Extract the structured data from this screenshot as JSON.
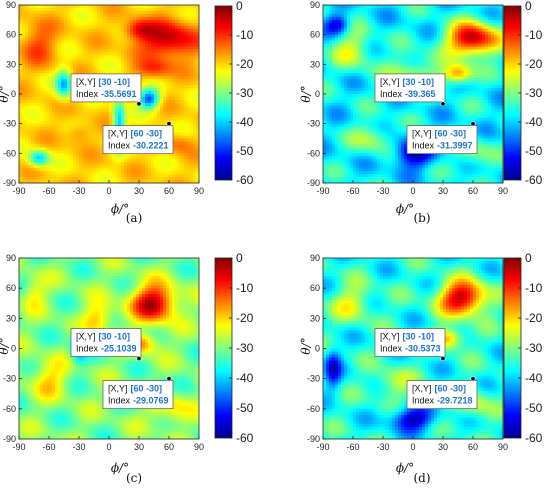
{
  "chart_data": [
    {
      "type": "heatmap",
      "panel_label": "(a)",
      "xlabel": "ϕ/°",
      "ylabel": "θ/°",
      "xlim": [
        -90,
        90
      ],
      "ylim": [
        -90,
        90
      ],
      "x_ticks": [
        "-90",
        "-60",
        "-30",
        "0",
        "30",
        "60",
        "90"
      ],
      "y_ticks": [
        "90",
        "60",
        "30",
        "0",
        "-30",
        "-60",
        "-90"
      ],
      "colorbar": {
        "range": [
          -60,
          0
        ],
        "ticks": [
          "0",
          "-10",
          "-20",
          "-30",
          "-40",
          "-50",
          "-60"
        ],
        "colormap": "jet"
      },
      "datatips": [
        {
          "xy_label": "[X,Y]",
          "xy": "[30 -10]",
          "index_label": "Index",
          "index": "-35.5691",
          "x": 30,
          "y": -10,
          "value": -35.5691
        },
        {
          "xy_label": "[X,Y]",
          "xy": "[60 -30]",
          "index_label": "Index",
          "index": "-30.2221",
          "x": 60,
          "y": -30,
          "value": -30.2221
        }
      ],
      "background_level": -20,
      "hotspots": [
        {
          "x": 60,
          "y": 55,
          "value": -3,
          "sx": 28,
          "sy": 18
        },
        {
          "x": 45,
          "y": 25,
          "value": -10,
          "sx": 18,
          "sy": 10
        },
        {
          "x": -70,
          "y": 50,
          "value": -12,
          "sx": 18,
          "sy": 22
        },
        {
          "x": 30,
          "y": 65,
          "value": -8,
          "sx": 15,
          "sy": 10
        },
        {
          "x": -30,
          "y": -40,
          "value": -14,
          "sx": 12,
          "sy": 10
        },
        {
          "x": 0,
          "y": 5,
          "value": -14,
          "sx": 12,
          "sy": 8
        },
        {
          "x": 70,
          "y": -50,
          "value": -14,
          "sx": 14,
          "sy": 10
        }
      ],
      "dips": [
        {
          "x": 40,
          "y": -5,
          "value": -48,
          "sx": 10,
          "sy": 10
        },
        {
          "x": -45,
          "y": 10,
          "value": -42,
          "sx": 8,
          "sy": 14
        },
        {
          "x": 10,
          "y": -30,
          "value": -42,
          "sx": 6,
          "sy": 25
        },
        {
          "x": -70,
          "y": -65,
          "value": -40,
          "sx": 10,
          "sy": 8
        }
      ],
      "ripple": 4
    },
    {
      "type": "heatmap",
      "panel_label": "(b)",
      "xlabel": "ϕ/°",
      "ylabel": "θ/°",
      "xlim": [
        -90,
        90
      ],
      "ylim": [
        -90,
        90
      ],
      "x_ticks": [
        "-90",
        "-60",
        "-30",
        "0",
        "30",
        "60",
        "90"
      ],
      "y_ticks": [
        "90",
        "60",
        "30",
        "0",
        "-30",
        "-60",
        "-90"
      ],
      "colorbar": {
        "range": [
          -60,
          0
        ],
        "ticks": [
          "0",
          "-10",
          "-20",
          "-30",
          "-40",
          "-50",
          "-60"
        ],
        "colormap": "jet"
      },
      "datatips": [
        {
          "xy_label": "[X,Y]",
          "xy": "[30 -10]",
          "index_label": "Index",
          "index": "-39.365",
          "x": 30,
          "y": -10,
          "value": -39.365
        },
        {
          "xy_label": "[X,Y]",
          "xy": "[60 -30]",
          "index_label": "Index",
          "index": "-31.3997",
          "x": 60,
          "y": -30,
          "value": -31.3997
        }
      ],
      "background_level": -38,
      "hotspots": [
        {
          "x": 60,
          "y": 55,
          "value": -2,
          "sx": 26,
          "sy": 17
        },
        {
          "x": 45,
          "y": 20,
          "value": -15,
          "sx": 15,
          "sy": 10
        },
        {
          "x": -60,
          "y": 45,
          "value": -25,
          "sx": 20,
          "sy": 20
        },
        {
          "x": 0,
          "y": 20,
          "value": -25,
          "sx": 25,
          "sy": 18
        },
        {
          "x": -40,
          "y": -45,
          "value": -27,
          "sx": 20,
          "sy": 15
        },
        {
          "x": 60,
          "y": -60,
          "value": -28,
          "sx": 18,
          "sy": 15
        }
      ],
      "dips": [
        {
          "x": 0,
          "y": -60,
          "value": -58,
          "sx": 20,
          "sy": 15
        },
        {
          "x": -75,
          "y": 70,
          "value": -55,
          "sx": 12,
          "sy": 10
        }
      ],
      "ripple": 7
    },
    {
      "type": "heatmap",
      "panel_label": "(c)",
      "xlabel": "ϕ/°",
      "ylabel": "θ/°",
      "xlim": [
        -90,
        90
      ],
      "ylim": [
        -90,
        90
      ],
      "x_ticks": [
        "-90",
        "-60",
        "-30",
        "0",
        "30",
        "60",
        "90"
      ],
      "y_ticks": [
        "90",
        "60",
        "30",
        "0",
        "-30",
        "-60",
        "-90"
      ],
      "colorbar": {
        "range": [
          -60,
          0
        ],
        "ticks": [
          "0",
          "-10",
          "-20",
          "-30",
          "-40",
          "-50",
          "-60"
        ],
        "colormap": "jet"
      },
      "datatips": [
        {
          "xy_label": "[X,Y]",
          "xy": "[30 -10]",
          "index_label": "Index",
          "index": "-25.1039",
          "x": 30,
          "y": -10,
          "value": -25.1039
        },
        {
          "xy_label": "[X,Y]",
          "xy": "[60 -30]",
          "index_label": "Index",
          "index": "-29.0769",
          "x": 60,
          "y": -30,
          "value": -29.0769
        }
      ],
      "background_level": -30,
      "hotspots": [
        {
          "x": 45,
          "y": 45,
          "value": -2,
          "sx": 22,
          "sy": 18
        },
        {
          "x": 30,
          "y": 5,
          "value": -14,
          "sx": 18,
          "sy": 10
        },
        {
          "x": -10,
          "y": 30,
          "value": -18,
          "sx": 15,
          "sy": 15
        },
        {
          "x": -60,
          "y": -30,
          "value": -20,
          "sx": 18,
          "sy": 18
        },
        {
          "x": 60,
          "y": -60,
          "value": -20,
          "sx": 20,
          "sy": 15
        },
        {
          "x": -75,
          "y": 55,
          "value": -22,
          "sx": 12,
          "sy": 15
        }
      ],
      "dips": [
        {
          "x": 55,
          "y": -45,
          "value": -50,
          "sx": 6,
          "sy": 10
        },
        {
          "x": -30,
          "y": 0,
          "value": -45,
          "sx": 8,
          "sy": 15
        }
      ],
      "ripple": 6
    },
    {
      "type": "heatmap",
      "panel_label": "(d)",
      "xlabel": "ϕ/°",
      "ylabel": "θ/°",
      "xlim": [
        -90,
        90
      ],
      "ylim": [
        -90,
        90
      ],
      "x_ticks": [
        "-90",
        "-60",
        "-30",
        "0",
        "30",
        "60",
        "90"
      ],
      "y_ticks": [
        "90",
        "60",
        "30",
        "0",
        "-30",
        "-60",
        "-90"
      ],
      "colorbar": {
        "range": [
          -60,
          0
        ],
        "ticks": [
          "0",
          "-10",
          "-20",
          "-30",
          "-40",
          "-50",
          "-60"
        ],
        "colormap": "jet"
      },
      "datatips": [
        {
          "xy_label": "[X,Y]",
          "xy": "[30 -10]",
          "index_label": "Index",
          "index": "-30.5373",
          "x": 30,
          "y": -10,
          "value": -30.5373
        },
        {
          "xy_label": "[X,Y]",
          "xy": "[60 -30]",
          "index_label": "Index",
          "index": "-29.7218",
          "x": 60,
          "y": -30,
          "value": -29.7218
        }
      ],
      "background_level": -36,
      "hotspots": [
        {
          "x": 50,
          "y": 50,
          "value": -2,
          "sx": 24,
          "sy": 17
        },
        {
          "x": 35,
          "y": 10,
          "value": -16,
          "sx": 16,
          "sy": 10
        },
        {
          "x": -60,
          "y": 45,
          "value": -24,
          "sx": 20,
          "sy": 18
        },
        {
          "x": -20,
          "y": -35,
          "value": -26,
          "sx": 20,
          "sy": 15
        },
        {
          "x": 60,
          "y": -55,
          "value": -25,
          "sx": 18,
          "sy": 15
        }
      ],
      "dips": [
        {
          "x": 0,
          "y": -70,
          "value": -57,
          "sx": 22,
          "sy": 12
        },
        {
          "x": -80,
          "y": -20,
          "value": -52,
          "sx": 8,
          "sy": 20
        }
      ],
      "ripple": 7
    }
  ]
}
